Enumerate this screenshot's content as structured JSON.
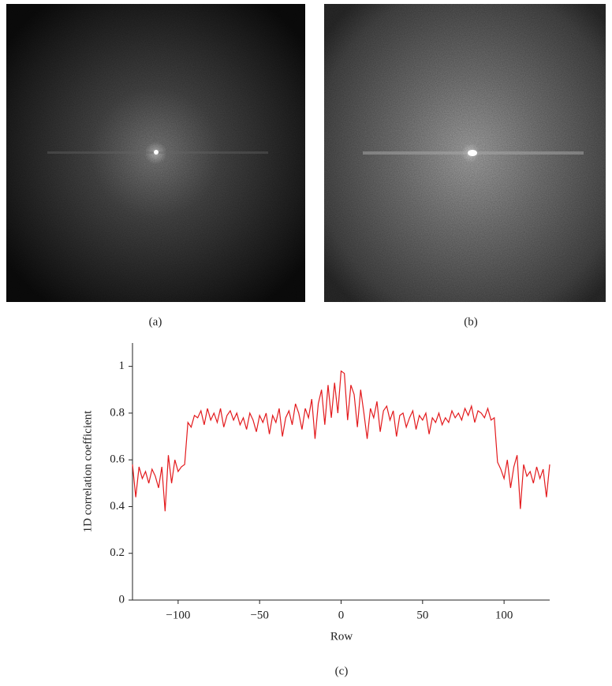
{
  "figure": {
    "panel_labels": [
      "(a)",
      "(b)",
      "(c)"
    ]
  },
  "chart_data": {
    "type": "line",
    "xlabel": "Row",
    "ylabel": "1D correlation coefficient",
    "x": [
      -128,
      -126,
      -124,
      -122,
      -120,
      -118,
      -116,
      -114,
      -112,
      -110,
      -108,
      -106,
      -104,
      -102,
      -100,
      -98,
      -96,
      -94,
      -92,
      -90,
      -88,
      -86,
      -84,
      -82,
      -80,
      -78,
      -76,
      -74,
      -72,
      -70,
      -68,
      -66,
      -64,
      -62,
      -60,
      -58,
      -56,
      -54,
      -52,
      -50,
      -48,
      -46,
      -44,
      -42,
      -40,
      -38,
      -36,
      -34,
      -32,
      -30,
      -28,
      -26,
      -24,
      -22,
      -20,
      -18,
      -16,
      -14,
      -12,
      -10,
      -8,
      -6,
      -4,
      -2,
      0,
      2,
      4,
      6,
      8,
      10,
      12,
      14,
      16,
      18,
      20,
      22,
      24,
      26,
      28,
      30,
      32,
      34,
      36,
      38,
      40,
      42,
      44,
      46,
      48,
      50,
      52,
      54,
      56,
      58,
      60,
      62,
      64,
      66,
      68,
      70,
      72,
      74,
      76,
      78,
      80,
      82,
      84,
      86,
      88,
      90,
      92,
      94,
      96,
      98,
      100,
      102,
      104,
      106,
      108,
      110,
      112,
      114,
      116,
      118,
      120,
      122,
      124,
      126,
      128
    ],
    "values": [
      0.58,
      0.44,
      0.57,
      0.52,
      0.55,
      0.5,
      0.56,
      0.53,
      0.48,
      0.57,
      0.38,
      0.62,
      0.5,
      0.6,
      0.55,
      0.57,
      0.58,
      0.76,
      0.74,
      0.79,
      0.78,
      0.81,
      0.75,
      0.82,
      0.77,
      0.8,
      0.76,
      0.82,
      0.74,
      0.79,
      0.81,
      0.77,
      0.8,
      0.75,
      0.78,
      0.73,
      0.8,
      0.77,
      0.72,
      0.79,
      0.76,
      0.8,
      0.71,
      0.79,
      0.76,
      0.82,
      0.7,
      0.78,
      0.81,
      0.75,
      0.84,
      0.8,
      0.73,
      0.82,
      0.78,
      0.86,
      0.69,
      0.84,
      0.9,
      0.75,
      0.92,
      0.78,
      0.93,
      0.8,
      0.98,
      0.97,
      0.77,
      0.92,
      0.88,
      0.74,
      0.9,
      0.8,
      0.69,
      0.82,
      0.78,
      0.85,
      0.72,
      0.81,
      0.83,
      0.77,
      0.81,
      0.7,
      0.79,
      0.8,
      0.74,
      0.78,
      0.81,
      0.73,
      0.79,
      0.77,
      0.8,
      0.71,
      0.78,
      0.76,
      0.8,
      0.75,
      0.78,
      0.76,
      0.81,
      0.78,
      0.8,
      0.77,
      0.82,
      0.79,
      0.83,
      0.76,
      0.81,
      0.8,
      0.78,
      0.82,
      0.77,
      0.78,
      0.59,
      0.56,
      0.52,
      0.6,
      0.48,
      0.57,
      0.62,
      0.39,
      0.58,
      0.53,
      0.55,
      0.5,
      0.57,
      0.52,
      0.56,
      0.44,
      0.58
    ],
    "color": "#e3191c",
    "xlim": [
      -128,
      128
    ],
    "ylim": [
      0,
      1.1
    ],
    "xticks": [
      {
        "value": -100,
        "label": "−100"
      },
      {
        "value": -50,
        "label": "−50"
      },
      0,
      50,
      100
    ],
    "yticks": [
      0,
      0.2,
      0.4,
      0.6,
      0.8,
      1
    ]
  }
}
